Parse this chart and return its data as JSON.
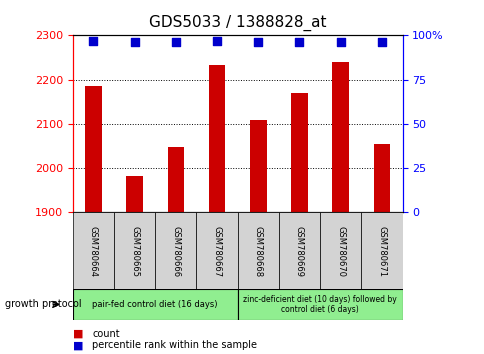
{
  "title": "GDS5033 / 1388828_at",
  "samples": [
    "GSM780664",
    "GSM780665",
    "GSM780666",
    "GSM780667",
    "GSM780668",
    "GSM780669",
    "GSM780670",
    "GSM780671"
  ],
  "counts": [
    2186,
    1983,
    2048,
    2232,
    2109,
    2170,
    2240,
    2055
  ],
  "percentiles": [
    97,
    96,
    96,
    97,
    96,
    96,
    96,
    96
  ],
  "ylim_left": [
    1900,
    2300
  ],
  "ylim_right": [
    0,
    100
  ],
  "yticks_left": [
    1900,
    2000,
    2100,
    2200,
    2300
  ],
  "yticks_right": [
    0,
    25,
    50,
    75,
    100
  ],
  "bar_color": "#cc0000",
  "dot_color": "#0000cc",
  "group1_label": "pair-fed control diet (16 days)",
  "group2_label": "zinc-deficient diet (10 days) followed by\ncontrol diet (6 days)",
  "group1_indices": [
    0,
    1,
    2,
    3
  ],
  "group2_indices": [
    4,
    5,
    6,
    7
  ],
  "group1_bg": "#90ee90",
  "group2_bg": "#90ee90",
  "sample_bg": "#d3d3d3",
  "protocol_label": "growth protocol",
  "legend_count_label": "count",
  "legend_pct_label": "percentile rank within the sample",
  "title_fontsize": 11,
  "tick_fontsize": 8,
  "dot_size": 30,
  "bar_bottom": 1900,
  "bar_width": 0.4
}
